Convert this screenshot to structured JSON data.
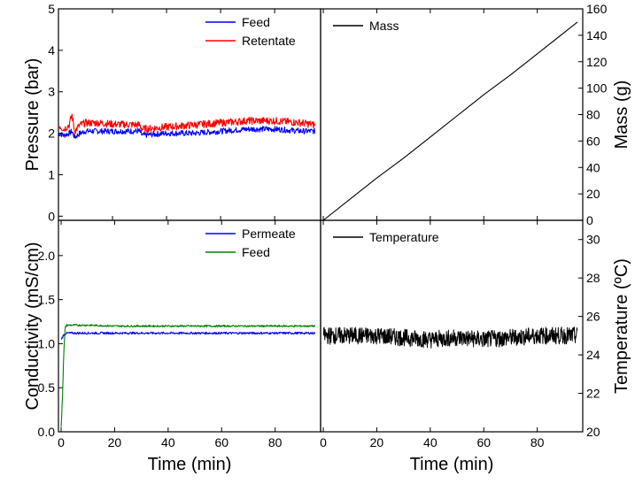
{
  "chart_data": [
    {
      "type": "line",
      "panel": "top-left",
      "xlabel": "",
      "ylabel": "Pressure (bar)",
      "xlim": [
        0,
        97
      ],
      "ylim": [
        -0.1,
        5
      ],
      "xticks": [
        0,
        20,
        40,
        60,
        80
      ],
      "yticks": [
        0,
        1,
        2,
        3,
        4,
        5
      ],
      "legend_position": "top-right",
      "series": [
        {
          "name": "Feed",
          "color": "#0000ff",
          "x": [
            0,
            2,
            4,
            5,
            6,
            8,
            10,
            15,
            20,
            30,
            31,
            40,
            50,
            60,
            70,
            80,
            90,
            95
          ],
          "y": [
            2.0,
            1.95,
            2.0,
            2.05,
            1.9,
            2.0,
            2.05,
            2.05,
            2.05,
            2.05,
            1.95,
            2.0,
            2.0,
            2.05,
            2.1,
            2.1,
            2.05,
            2.05
          ]
        },
        {
          "name": "Retentate",
          "color": "#ff0000",
          "x": [
            0,
            2,
            4,
            5,
            6,
            8,
            10,
            15,
            20,
            30,
            31,
            40,
            50,
            60,
            70,
            80,
            90,
            95
          ],
          "y": [
            2.2,
            2.1,
            2.2,
            2.45,
            2.05,
            2.2,
            2.25,
            2.25,
            2.22,
            2.2,
            2.1,
            2.15,
            2.2,
            2.25,
            2.3,
            2.3,
            2.25,
            2.2
          ]
        }
      ]
    },
    {
      "type": "line",
      "panel": "top-right",
      "xlabel": "",
      "ylabel": "Mass (g)",
      "xlim": [
        -1,
        97
      ],
      "ylim": [
        0,
        160
      ],
      "xticks": [
        0,
        20,
        40,
        60,
        80
      ],
      "yticks": [
        0,
        20,
        40,
        60,
        80,
        100,
        120,
        140,
        160
      ],
      "legend_position": "top-left",
      "series": [
        {
          "name": "Mass",
          "color": "#000000",
          "x": [
            0,
            10,
            20,
            30,
            40,
            50,
            60,
            70,
            80,
            90,
            95
          ],
          "y": [
            0,
            16,
            32,
            47,
            63,
            79,
            95,
            110,
            126,
            142,
            150
          ]
        }
      ]
    },
    {
      "type": "line",
      "panel": "bottom-left",
      "xlabel": "Time (min)",
      "ylabel": "Conductivity (mS/cm)",
      "xlim": [
        -1,
        97
      ],
      "ylim": [
        0,
        2.4
      ],
      "xticks": [
        0,
        20,
        40,
        60,
        80
      ],
      "yticks": [
        0.0,
        0.5,
        1.0,
        1.5,
        2.0
      ],
      "ytick_labels": [
        "0.0",
        "0.5",
        "1.0",
        "1.5",
        "2.0"
      ],
      "legend_position": "top-right",
      "series": [
        {
          "name": "Permeate",
          "color": "#0000ff",
          "x": [
            0,
            1,
            2,
            3,
            5,
            10,
            20,
            30,
            40,
            50,
            60,
            70,
            80,
            90,
            95
          ],
          "y": [
            1.05,
            1.1,
            1.12,
            1.12,
            1.12,
            1.12,
            1.12,
            1.12,
            1.12,
            1.12,
            1.12,
            1.12,
            1.12,
            1.12,
            1.12
          ]
        },
        {
          "name": "Feed",
          "color": "#008000",
          "x": [
            0,
            0.5,
            1,
            1.5,
            2,
            3,
            5,
            10,
            20,
            30,
            40,
            50,
            60,
            70,
            80,
            90,
            95
          ],
          "y": [
            0.05,
            0.4,
            0.9,
            1.18,
            1.21,
            1.21,
            1.21,
            1.21,
            1.2,
            1.2,
            1.2,
            1.2,
            1.2,
            1.2,
            1.2,
            1.2,
            1.2
          ]
        }
      ]
    },
    {
      "type": "line",
      "panel": "bottom-right",
      "xlabel": "Time (min)",
      "ylabel": "Temperature (ºC)",
      "xlim": [
        -1,
        97
      ],
      "ylim": [
        20,
        31
      ],
      "xticks": [
        0,
        20,
        40,
        60,
        80
      ],
      "yticks": [
        20,
        22,
        24,
        26,
        28,
        30
      ],
      "legend_position": "top-left",
      "series": [
        {
          "name": "Temperature",
          "color": "#000000",
          "x": [
            0,
            10,
            20,
            30,
            40,
            50,
            60,
            70,
            80,
            90,
            95
          ],
          "y": [
            25.0,
            25.0,
            25.0,
            24.9,
            24.8,
            24.9,
            24.8,
            24.9,
            25.0,
            25.0,
            25.0
          ]
        }
      ]
    }
  ]
}
